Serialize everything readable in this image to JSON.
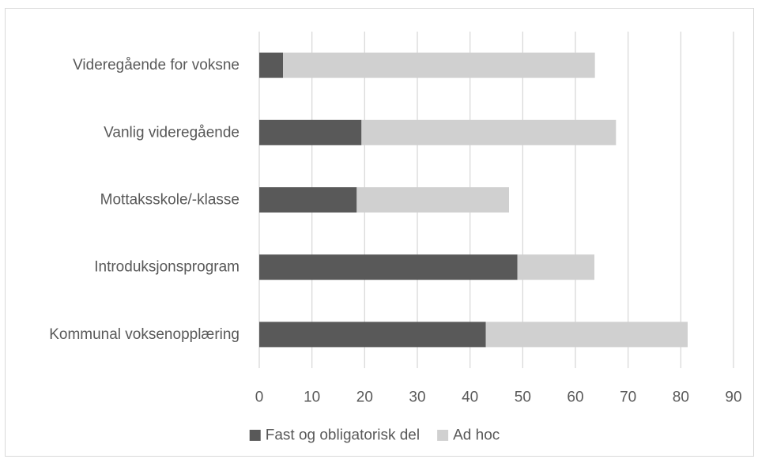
{
  "chart_data": {
    "type": "bar",
    "orientation": "horizontal",
    "stacked": true,
    "categories": [
      "Videregående for voksne",
      "Vanlig videregående",
      "Mottaksskole/-klasse",
      "Introduksjonsprogram",
      "Kommunal voksenopplæring"
    ],
    "series": [
      {
        "name": "Fast og obligatorisk del",
        "color": "#595959",
        "values": [
          4.5,
          19.4,
          18.5,
          49,
          43
        ]
      },
      {
        "name": "Ad hoc",
        "color": "#d0d0d0",
        "values": [
          59.2,
          48.3,
          28.9,
          14.6,
          38.3
        ]
      }
    ],
    "xlim": [
      0,
      90
    ],
    "xticks": [
      0,
      10,
      20,
      30,
      40,
      50,
      60,
      70,
      80,
      90
    ],
    "grid": true,
    "legend_position": "bottom",
    "title": "",
    "xlabel": "",
    "ylabel": ""
  }
}
